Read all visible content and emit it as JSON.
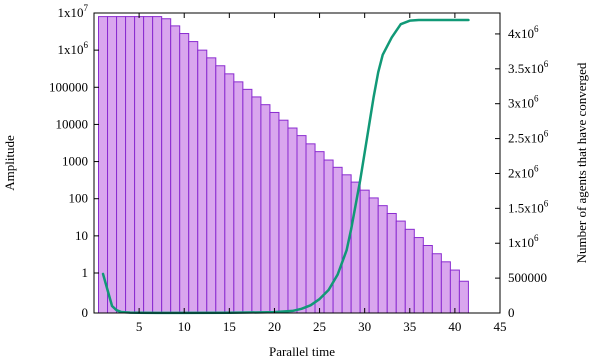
{
  "chart_data": {
    "type": "bar+line",
    "xlabel": "Parallel time",
    "ylabel_left": "Amplitude",
    "ylabel_right": "Number of agents that have converged",
    "xlim": [
      0,
      45
    ],
    "x_ticks": [
      5,
      10,
      15,
      20,
      25,
      30,
      35,
      40,
      45
    ],
    "left_axis": {
      "scale": "log-with-zero",
      "ticks": [
        {
          "value": 0,
          "label": "0"
        },
        {
          "value": 1,
          "label": "1"
        },
        {
          "value": 10,
          "label": "10"
        },
        {
          "value": 100,
          "label": "100"
        },
        {
          "value": 1000,
          "label": "1000"
        },
        {
          "value": 10000,
          "label": "10000"
        },
        {
          "value": 100000,
          "label": "100000"
        },
        {
          "value": 1000000,
          "label": "1x10",
          "sup": "6"
        },
        {
          "value": 10000000,
          "label": "1x10",
          "sup": "7"
        }
      ]
    },
    "right_axis": {
      "ylim": [
        0,
        4300000
      ],
      "ticks": [
        {
          "value": 0,
          "label": "0"
        },
        {
          "value": 500000,
          "label": "500000"
        },
        {
          "value": 1000000,
          "label": "1x10",
          "sup": "6"
        },
        {
          "value": 1500000,
          "label": "1.5x10",
          "sup": "6"
        },
        {
          "value": 2000000,
          "label": "2x10",
          "sup": "6"
        },
        {
          "value": 2500000,
          "label": "2.5x10",
          "sup": "6"
        },
        {
          "value": 3000000,
          "label": "3x10",
          "sup": "6"
        },
        {
          "value": 3500000,
          "label": "3.5x10",
          "sup": "6"
        },
        {
          "value": 4000000,
          "label": "4x10",
          "sup": "6"
        }
      ]
    },
    "bars": {
      "name": "Amplitude",
      "axis": "left",
      "color": "#d9a6ee",
      "edge_color": "#8a2bd0",
      "x": [
        1,
        2,
        3,
        4,
        5,
        6,
        7,
        8,
        9,
        10,
        11,
        12,
        13,
        14,
        15,
        16,
        17,
        18,
        19,
        20,
        21,
        22,
        23,
        24,
        25,
        26,
        27,
        28,
        29,
        30,
        31,
        32,
        33,
        34,
        35,
        36,
        37,
        38,
        39,
        40,
        41
      ],
      "values": [
        8000000,
        8000000,
        8000000,
        8000000,
        8000000,
        8000000,
        8000000,
        7000000,
        4500000,
        2800000,
        1700000,
        1000000,
        620000,
        380000,
        230000,
        140000,
        88000,
        55000,
        34000,
        21000,
        13000,
        8000,
        5000,
        3000,
        1850,
        1100,
        700,
        440,
        280,
        170,
        105,
        65,
        40,
        25,
        15,
        9,
        5.5,
        3.3,
        2,
        1.2,
        0.6
      ]
    },
    "line": {
      "name": "Number of agents that have converged",
      "axis": "right",
      "color": "#119977",
      "x": [
        1,
        1.5,
        2,
        2.5,
        3,
        4,
        5,
        7,
        10,
        15,
        20,
        22,
        23,
        24,
        25,
        26,
        27,
        28,
        28.5,
        29,
        29.5,
        30,
        30.5,
        31,
        31.5,
        32,
        33,
        34,
        35,
        36,
        38,
        40,
        41.5
      ],
      "values": [
        560000,
        330000,
        100000,
        40000,
        15000,
        5000,
        3000,
        2000,
        2000,
        3000,
        12000,
        30000,
        60000,
        110000,
        200000,
        330000,
        550000,
        900000,
        1200000,
        1550000,
        1900000,
        2300000,
        2700000,
        3100000,
        3450000,
        3700000,
        3950000,
        4140000,
        4190000,
        4200000,
        4200000,
        4200000,
        4200000
      ]
    }
  }
}
